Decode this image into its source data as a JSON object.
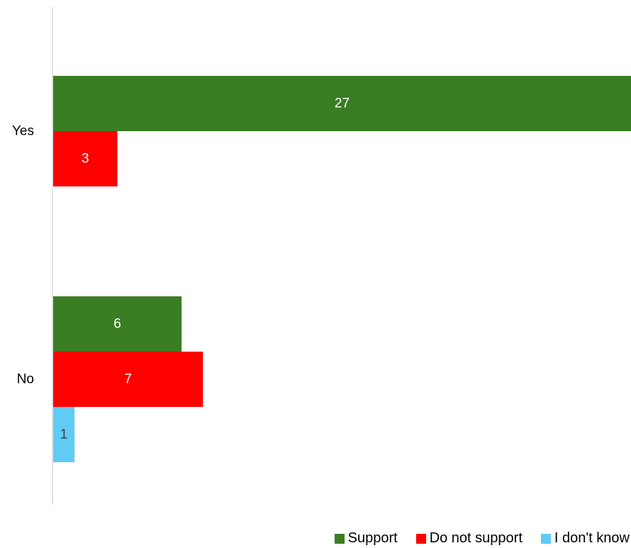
{
  "chart_data": {
    "type": "bar",
    "orientation": "horizontal",
    "categories": [
      "Yes",
      "No"
    ],
    "series": [
      {
        "name": "Support",
        "color": "#3a7d22",
        "values": [
          27,
          6
        ]
      },
      {
        "name": "Do not support",
        "color": "#ff0000",
        "values": [
          3,
          7
        ]
      },
      {
        "name": "I don't know",
        "color": "#60cbf3",
        "values": [
          0,
          1
        ]
      }
    ],
    "xlim": [
      0,
      27
    ],
    "grid": false,
    "legend_position": "bottom-right",
    "data_label_colors": {
      "dark_bar": "#ffffff",
      "light_bar": "#404040"
    }
  }
}
